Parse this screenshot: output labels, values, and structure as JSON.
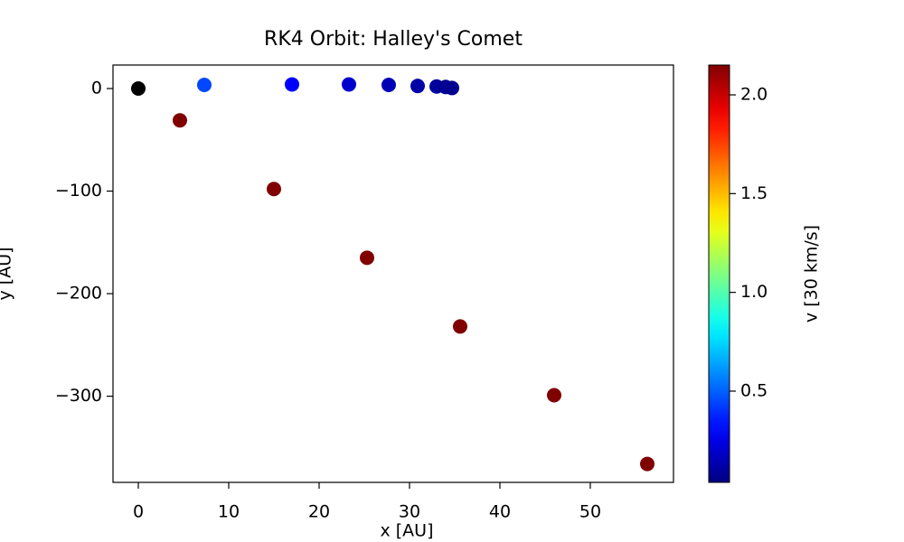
{
  "chart_data": {
    "type": "scatter",
    "title": "RK4 Orbit: Halley's Comet",
    "x_label": "x [AU]",
    "y_label": "y [AU]",
    "colorbar_label": "v [30 km/s]",
    "colormap": "jet",
    "xlim": [
      -2.8,
      59.2
    ],
    "ylim": [
      -384,
      22.9
    ],
    "xticks": [
      0,
      10,
      20,
      30,
      40,
      50
    ],
    "yticks": [
      {
        "value": -300,
        "label": "−300"
      },
      {
        "value": -200,
        "label": "−200"
      },
      {
        "value": -100,
        "label": "−100"
      },
      0
    ],
    "clim": [
      0.038,
      2.151
    ],
    "cticks": [
      0.5,
      {
        "value": 1,
        "label": "1.0"
      },
      1.5,
      {
        "value": 2,
        "label": "2.0"
      }
    ],
    "series": [
      {
        "color": "#000000",
        "x": [
          0
        ],
        "y": [
          0
        ]
      },
      {
        "x": [
          7.3,
          17.0,
          23.3,
          27.7,
          30.9,
          33.0,
          34.0,
          34.7,
          4.6,
          15.0,
          25.3,
          35.6,
          46.0,
          56.3
        ],
        "y": [
          3.5,
          4.0,
          4.0,
          3.5,
          2.5,
          2.0,
          1.5,
          0.5,
          -31,
          -98,
          -165,
          -232,
          -299,
          -366
        ],
        "c": [
          0.45,
          0.3,
          0.2,
          0.15,
          0.12,
          0.1,
          0.08,
          0.07,
          2.15,
          2.15,
          2.15,
          2.15,
          2.15,
          2.15
        ]
      }
    ]
  }
}
